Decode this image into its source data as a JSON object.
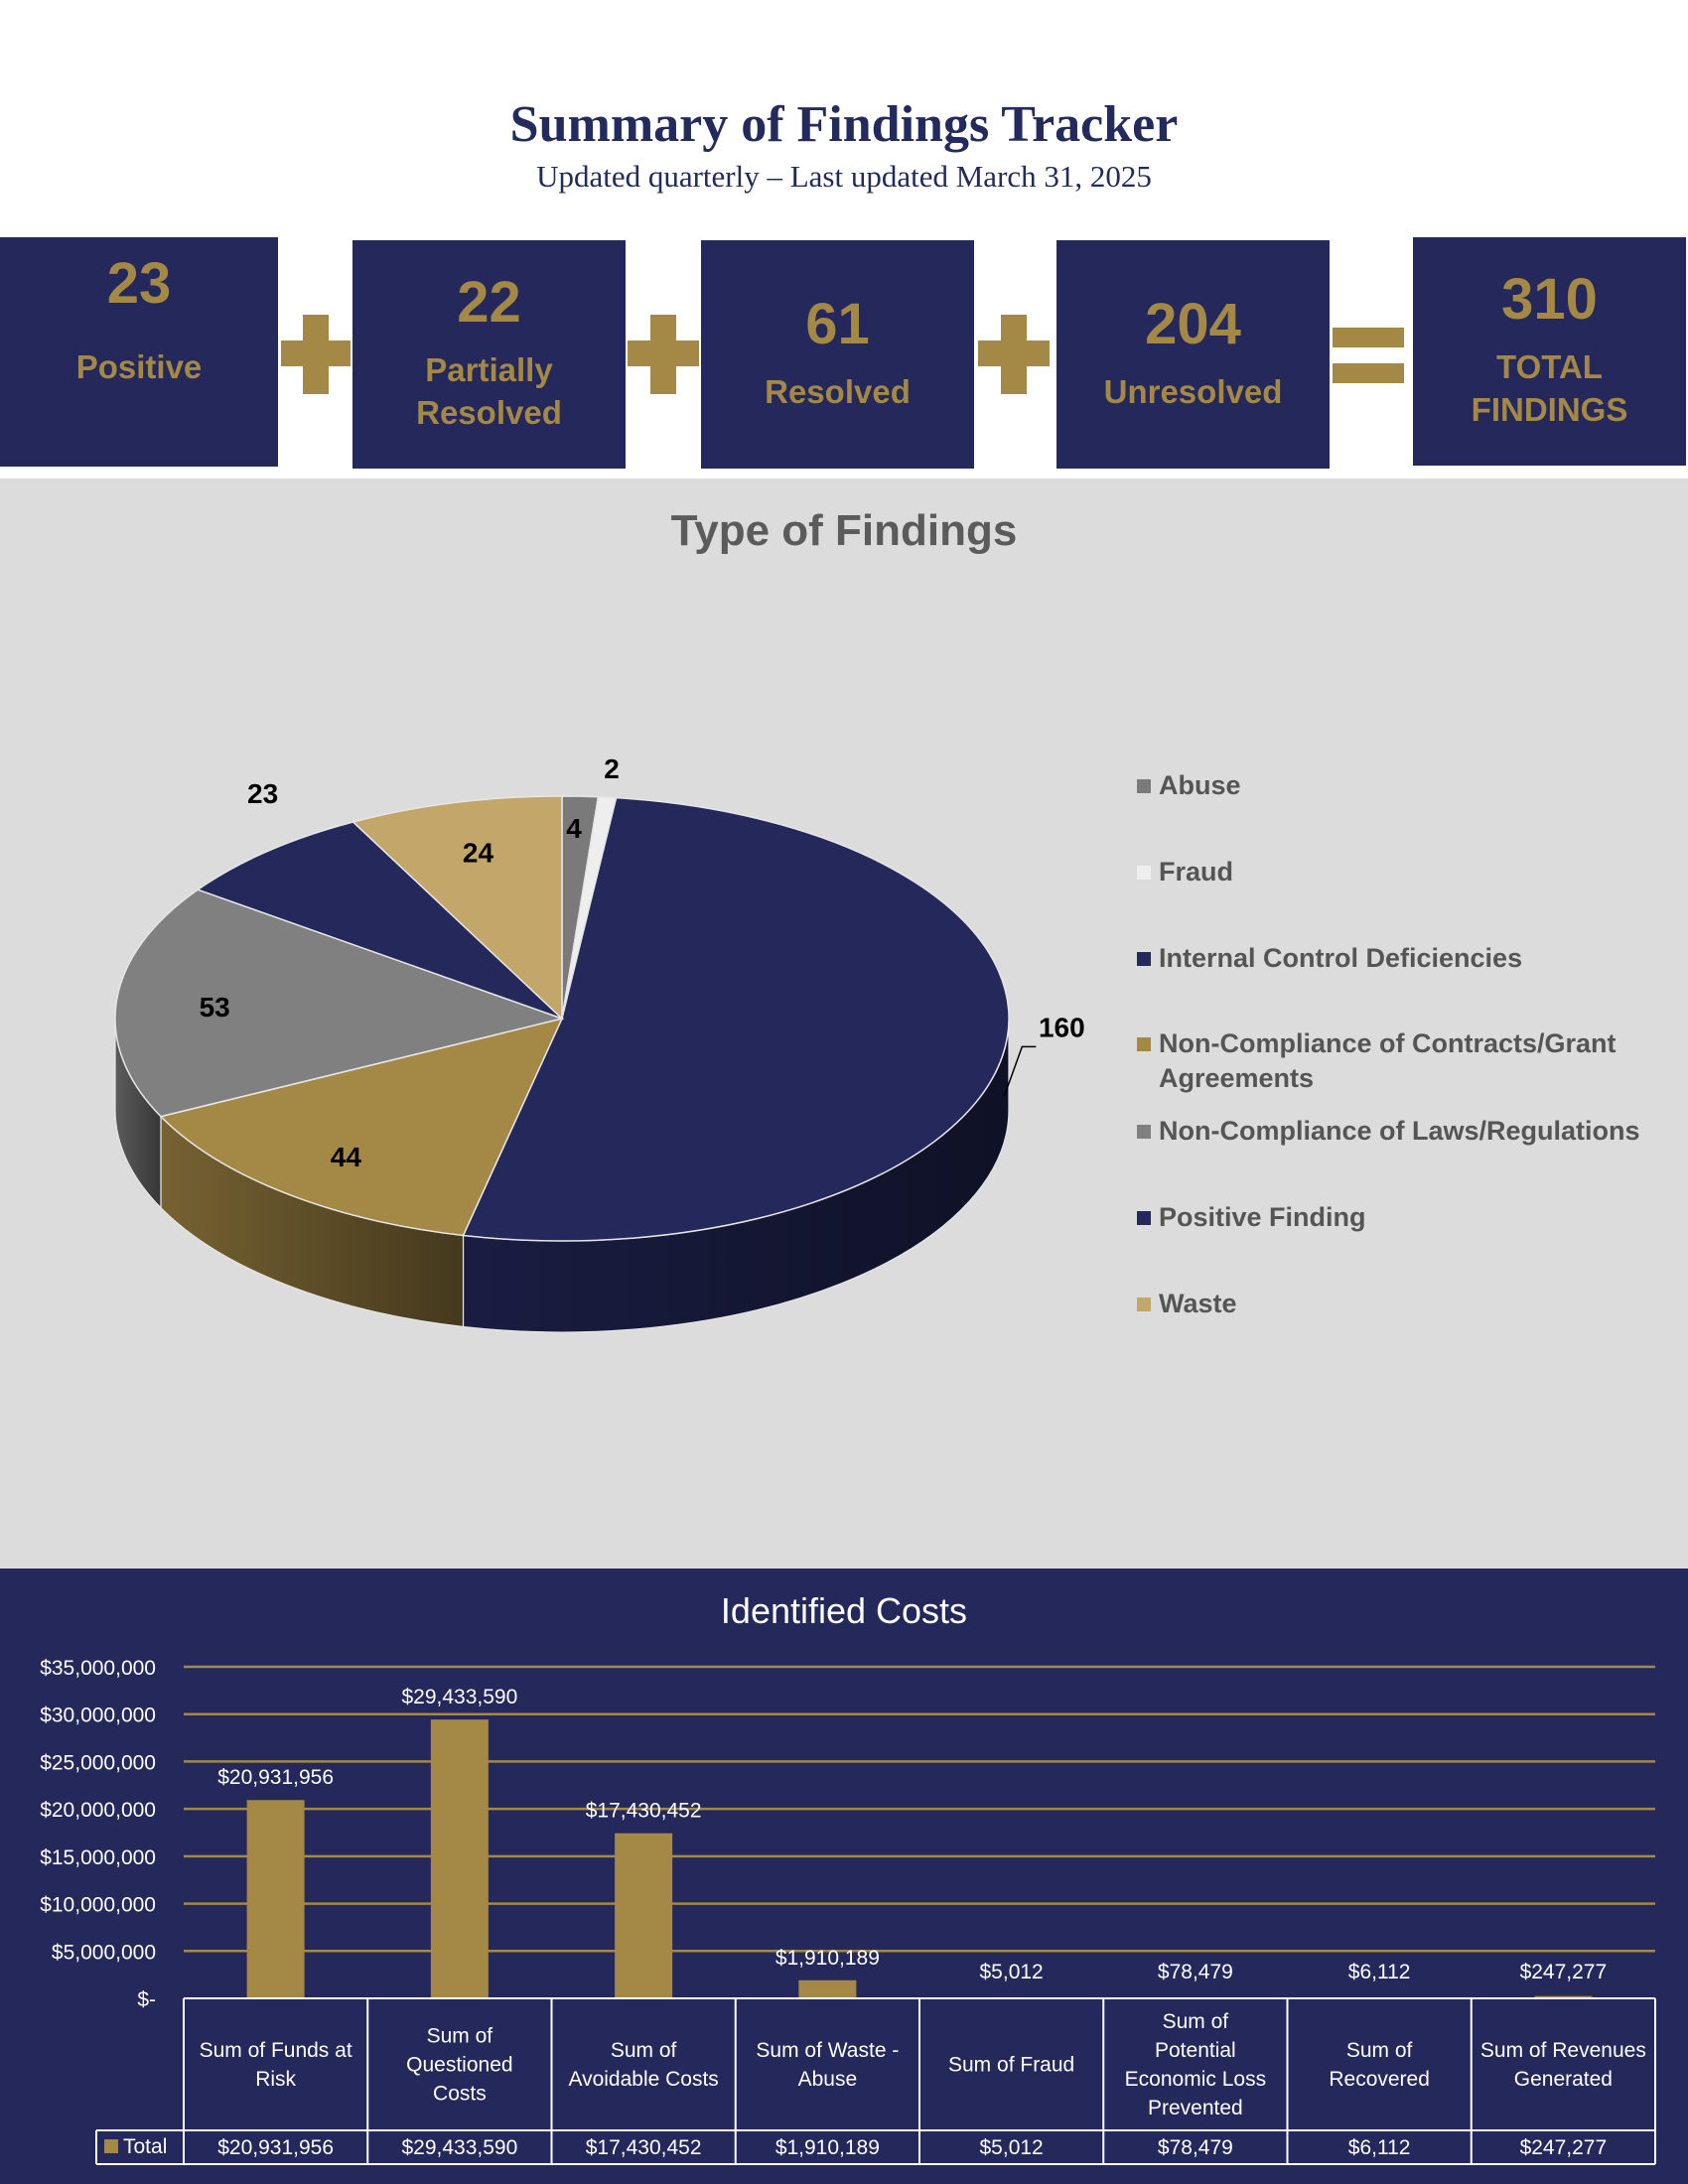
{
  "header": {
    "title": "Summary of Findings Tracker",
    "subtitle": "Updated quarterly – Last updated March 31, 2025"
  },
  "kpis": [
    {
      "value": "23",
      "label": "Positive"
    },
    {
      "value": "22",
      "label": "Partially Resolved"
    },
    {
      "value": "61",
      "label": "Resolved"
    },
    {
      "value": "204",
      "label": "Unresolved"
    },
    {
      "value": "310",
      "label": "TOTAL FINDINGS"
    }
  ],
  "colors": {
    "navy": "#24285b",
    "gold": "#a48845",
    "panel_gray": "#dcdcdc"
  },
  "chart_data": [
    {
      "type": "pie",
      "title": "Type of Findings",
      "legend_position": "right",
      "slices": [
        {
          "name": "Abuse",
          "value": 4,
          "color": "#7a7a7a"
        },
        {
          "name": "Fraud",
          "value": 2,
          "color": "#eeeeee"
        },
        {
          "name": "Internal Control Deficiencies",
          "value": 160,
          "color": "#24285b"
        },
        {
          "name": "Non-Compliance of Contracts/Grant Agreements",
          "value": 44,
          "color": "#a48845"
        },
        {
          "name": "Non-Compliance of Laws/Regulations",
          "value": 53,
          "color": "#808080"
        },
        {
          "name": "Positive Finding",
          "value": 23,
          "color": "#24285b"
        },
        {
          "name": "Waste",
          "value": 24,
          "color": "#c3a66a"
        }
      ]
    },
    {
      "type": "bar",
      "title": "Identified Costs",
      "categories": [
        "Sum of Funds at Risk",
        "Sum of Questioned Costs",
        "Sum of Avoidable Costs",
        "Sum of Waste - Abuse",
        "Sum of Fraud",
        "Sum of Potential Economic Loss Prevented",
        "Sum of Recovered",
        "Sum of Revenues Generated"
      ],
      "series": [
        {
          "name": "Total",
          "values": [
            20931956,
            29433590,
            17430452,
            1910189,
            5012,
            78479,
            6112,
            247277
          ]
        }
      ],
      "value_labels": [
        "$20,931,956",
        "$29,433,590",
        "$17,430,452",
        "$1,910,189",
        "$5,012",
        "$78,479",
        "$6,112",
        "$247,277"
      ],
      "ylim": [
        0,
        35000000
      ],
      "yticks": [
        {
          "value": 35000000,
          "label": "$35,000,000"
        },
        {
          "value": 30000000,
          "label": "$30,000,000"
        },
        {
          "value": 25000000,
          "label": "$25,000,000"
        },
        {
          "value": 20000000,
          "label": "$20,000,000"
        },
        {
          "value": 15000000,
          "label": "$15,000,000"
        },
        {
          "value": 10000000,
          "label": "$10,000,000"
        },
        {
          "value": 5000000,
          "label": "$5,000,000"
        },
        {
          "value": 0,
          "label": "$-"
        }
      ],
      "grid": true,
      "data_table": true
    }
  ]
}
